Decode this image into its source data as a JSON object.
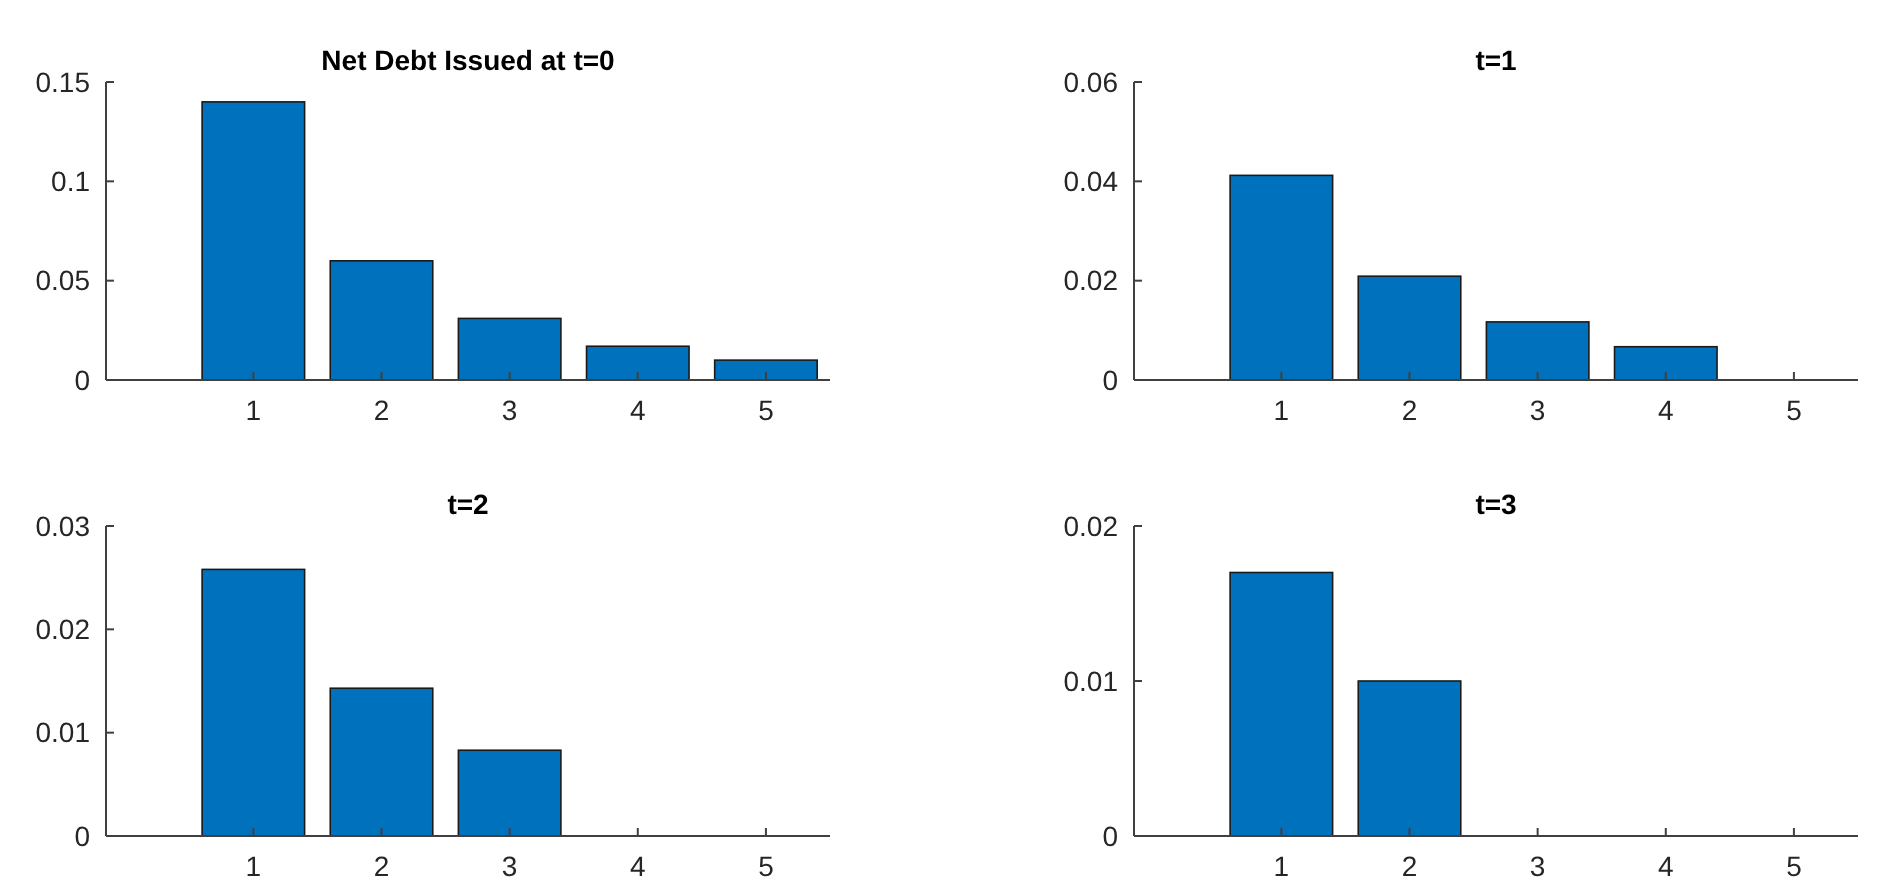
{
  "chart_data": [
    {
      "type": "bar",
      "title": "Net Debt Issued at t=0",
      "categories": [
        "1",
        "2",
        "3",
        "4",
        "5"
      ],
      "values": [
        0.14,
        0.06,
        0.031,
        0.017,
        0.01
      ],
      "color": "#0072bd",
      "ylim": [
        0,
        0.15
      ],
      "yticks": [
        0,
        0.05,
        0.1,
        0.15
      ],
      "grid": false
    },
    {
      "type": "bar",
      "title": "t=1",
      "categories": [
        "1",
        "2",
        "3",
        "4",
        "5"
      ],
      "values": [
        0.0412,
        0.0209,
        0.0117,
        0.0067,
        0
      ],
      "color": "#0072bd",
      "ylim": [
        0,
        0.06
      ],
      "yticks": [
        0,
        0.02,
        0.04,
        0.06
      ],
      "grid": false
    },
    {
      "type": "bar",
      "title": "t=2",
      "categories": [
        "1",
        "2",
        "3",
        "4",
        "5"
      ],
      "values": [
        0.0258,
        0.0143,
        0.0083,
        0,
        0
      ],
      "color": "#0072bd",
      "ylim": [
        0,
        0.03
      ],
      "yticks": [
        0,
        0.01,
        0.02,
        0.03
      ],
      "grid": false
    },
    {
      "type": "bar",
      "title": "t=3",
      "categories": [
        "1",
        "2",
        "3",
        "4",
        "5"
      ],
      "values": [
        0.017,
        0.01,
        0,
        0,
        0
      ],
      "color": "#0072bd",
      "ylim": [
        0,
        0.02
      ],
      "yticks": [
        0,
        0.01,
        0.02
      ],
      "grid": false
    }
  ]
}
